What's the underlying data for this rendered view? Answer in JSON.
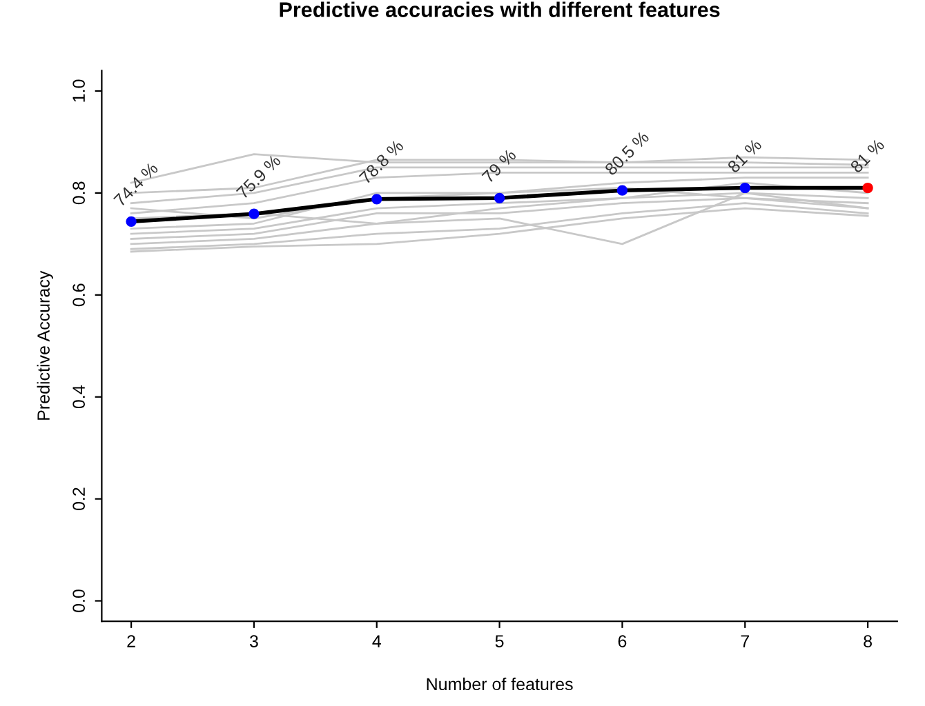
{
  "chart_data": {
    "type": "line",
    "title": "Predictive accuracies with different features",
    "xlabel": "Number of features",
    "ylabel": "Predictive Accuracy",
    "x": [
      2,
      3,
      4,
      5,
      6,
      7,
      8
    ],
    "xlim": [
      1.76,
      8.24
    ],
    "xticks": [
      2,
      3,
      4,
      5,
      6,
      7,
      8
    ],
    "ylim": [
      -0.04,
      1.04
    ],
    "yticks": [
      {
        "value": 0,
        "label": "0.0"
      },
      0.2,
      0.4,
      0.6,
      0.8,
      {
        "value": 1,
        "label": "1.0"
      }
    ],
    "grid": false,
    "legend": false,
    "line_style": "solid",
    "series": [
      {
        "color": "#c8c8c8",
        "marker": "none",
        "values": [
          0.82,
          0.876,
          0.86,
          0.86,
          0.86,
          0.86,
          0.855
        ]
      },
      {
        "color": "#c8c8c8",
        "marker": "none",
        "values": [
          0.8,
          0.81,
          0.865,
          0.865,
          0.86,
          0.87,
          0.865
        ]
      },
      {
        "color": "#c8c8c8",
        "marker": "none",
        "values": [
          0.78,
          0.8,
          0.85,
          0.85,
          0.85,
          0.85,
          0.85
        ]
      },
      {
        "color": "#c8c8c8",
        "marker": "none",
        "values": [
          0.76,
          0.78,
          0.83,
          0.84,
          0.84,
          0.84,
          0.84
        ]
      },
      {
        "color": "#c8c8c8",
        "marker": "none",
        "values": [
          0.73,
          0.74,
          0.8,
          0.8,
          0.82,
          0.83,
          0.83
        ]
      },
      {
        "color": "#c8c8c8",
        "marker": "none",
        "values": [
          0.72,
          0.73,
          0.77,
          0.78,
          0.79,
          0.8,
          0.79
        ]
      },
      {
        "color": "#c8c8c8",
        "marker": "none",
        "values": [
          0.71,
          0.72,
          0.76,
          0.76,
          0.78,
          0.79,
          0.78
        ]
      },
      {
        "color": "#c8c8c8",
        "marker": "none",
        "values": [
          0.7,
          0.71,
          0.74,
          0.75,
          0.7,
          0.8,
          0.77
        ]
      },
      {
        "color": "#c8c8c8",
        "marker": "none",
        "values": [
          0.69,
          0.7,
          0.72,
          0.73,
          0.76,
          0.78,
          0.76
        ]
      },
      {
        "color": "#c8c8c8",
        "marker": "none",
        "values": [
          0.685,
          0.695,
          0.7,
          0.72,
          0.75,
          0.77,
          0.755
        ]
      },
      {
        "color": "#c8c8c8",
        "marker": "none",
        "values": [
          0.75,
          0.76,
          0.74,
          0.77,
          0.79,
          0.82,
          0.8
        ]
      },
      {
        "color": "#c8c8c8",
        "marker": "none",
        "values": [
          0.77,
          0.75,
          0.79,
          0.8,
          0.81,
          0.79,
          0.77
        ]
      },
      {
        "color": "#000000",
        "marker": "circle",
        "colors": [
          "#0000ff",
          "#0000ff",
          "#0000ff",
          "#0000ff",
          "#0000ff",
          "#0000ff",
          "#ff0000"
        ],
        "values": [
          0.744,
          0.759,
          0.788,
          0.79,
          0.805,
          0.81,
          0.81
        ],
        "value_labels": [
          "74.4 %",
          "75.9 %",
          "78.8 %",
          "79 %",
          "80.5 %",
          "81 %",
          "81 %"
        ]
      }
    ]
  }
}
